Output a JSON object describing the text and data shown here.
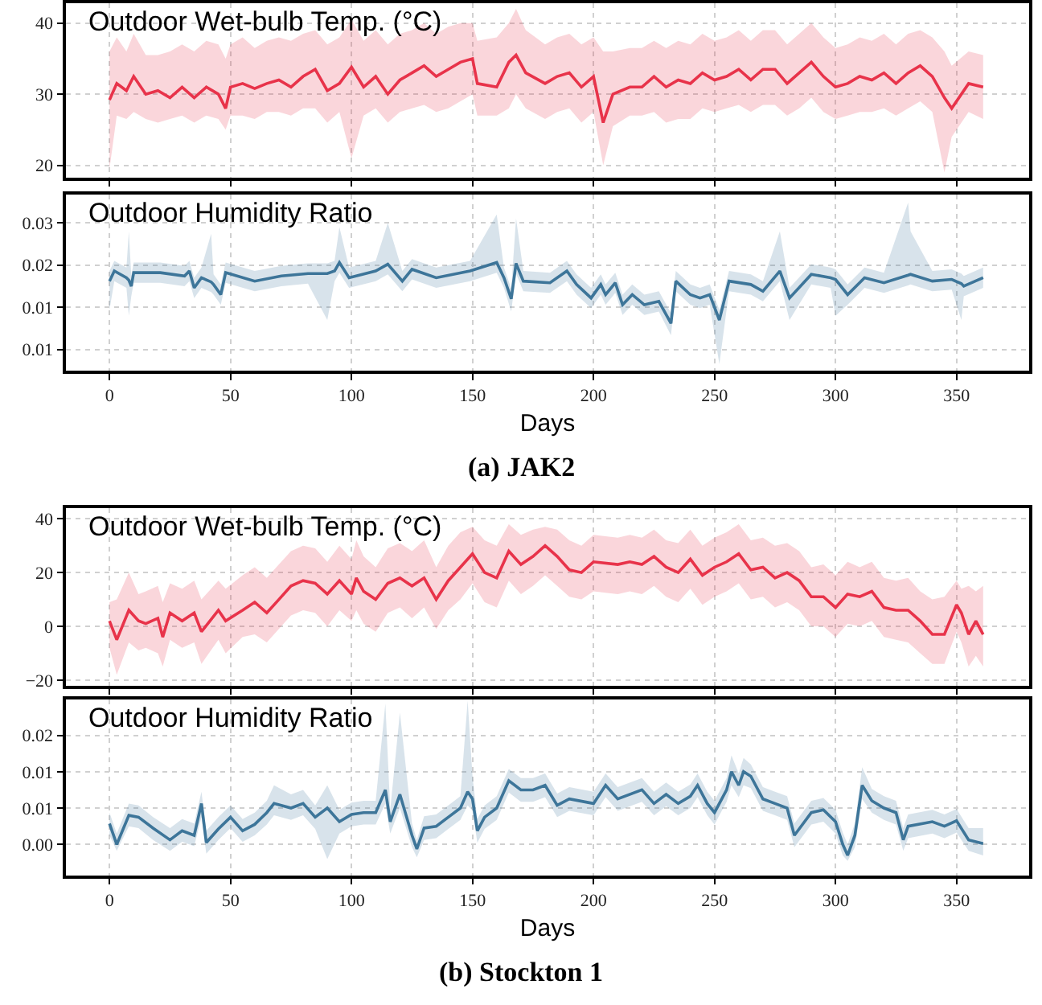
{
  "chart_data": [
    {
      "type": "line",
      "title": "Outdoor Wet-bulb Temp. (°C)",
      "x": [
        0,
        3,
        7,
        10,
        15,
        20,
        25,
        30,
        35,
        40,
        45,
        48,
        50,
        55,
        60,
        65,
        70,
        75,
        80,
        85,
        90,
        95,
        100,
        105,
        110,
        115,
        120,
        125,
        130,
        135,
        140,
        145,
        150,
        152,
        160,
        165,
        168,
        172,
        180,
        185,
        190,
        195,
        200,
        204,
        208,
        215,
        220,
        225,
        230,
        235,
        240,
        245,
        250,
        255,
        260,
        265,
        270,
        275,
        280,
        285,
        290,
        295,
        300,
        305,
        310,
        315,
        320,
        325,
        330,
        335,
        340,
        345,
        348,
        355,
        361
      ],
      "series": [
        {
          "color": "#e8334a",
          "values": [
            29.2,
            31.5,
            30.5,
            32.5,
            30,
            30.5,
            29.5,
            31,
            29.5,
            31,
            30,
            28,
            31,
            31.5,
            30.8,
            31.5,
            32,
            31,
            32.5,
            33.5,
            30.5,
            31.5,
            33.8,
            31,
            32.5,
            30,
            32,
            33,
            34,
            32.5,
            33.5,
            34.5,
            35,
            31.5,
            31,
            34.5,
            35.5,
            33,
            31.5,
            32.5,
            33,
            31,
            32.5,
            26,
            30,
            31,
            31,
            32.5,
            31,
            32,
            31.5,
            33,
            32,
            32.5,
            33.5,
            32,
            33.5,
            33.5,
            31.5,
            33,
            34.5,
            32.5,
            31,
            31.5,
            32.5,
            32,
            33,
            31.5,
            33,
            34,
            32.5,
            29.5,
            28,
            31.5,
            31
          ],
          "lower": [
            19.5,
            27,
            26.5,
            27.5,
            26.5,
            26,
            26.5,
            27,
            26,
            27,
            26.5,
            25,
            27,
            27,
            26.5,
            27.5,
            27.5,
            27,
            28,
            28,
            26,
            27.5,
            21,
            27,
            28,
            26,
            27.5,
            28,
            28.5,
            27.5,
            28,
            29,
            30,
            27,
            27,
            28,
            30,
            28,
            26.5,
            27.5,
            28,
            26,
            27.5,
            20,
            25.5,
            27,
            27,
            27.5,
            26,
            26.5,
            26.5,
            28,
            27.5,
            28,
            28.5,
            27.5,
            28.5,
            28.5,
            27,
            28,
            29.5,
            27.5,
            26.5,
            27,
            27.5,
            27.5,
            28,
            27,
            28,
            29,
            27.5,
            19,
            24,
            27.5,
            26.5
          ],
          "upper": [
            36,
            38,
            36,
            38.5,
            35.5,
            35.5,
            36,
            37,
            36,
            37.5,
            37,
            35,
            37,
            38,
            36.5,
            37.5,
            38,
            37.5,
            38.5,
            39,
            37,
            38,
            40.5,
            37.5,
            39,
            37,
            38.5,
            39,
            40,
            38.5,
            39.5,
            40,
            40,
            37.5,
            38,
            40,
            42,
            39,
            37,
            38,
            38.5,
            37,
            38,
            36,
            36,
            36.5,
            36.5,
            37.5,
            36.5,
            37.5,
            37,
            38.5,
            37.5,
            38,
            39,
            37.5,
            39,
            39,
            37,
            38.5,
            40,
            38,
            36.5,
            37,
            38,
            37.5,
            38.5,
            37,
            38.5,
            39,
            38,
            36,
            34,
            36,
            35.5
          ]
        }
      ],
      "xlim": [
        -18,
        380
      ],
      "xticks": [
        0,
        50,
        100,
        150,
        200,
        250,
        300,
        350
      ],
      "ylim": [
        18.3,
        42.8
      ],
      "yticks": [
        20,
        30,
        40
      ],
      "grid": true,
      "tick_labels": "y"
    },
    {
      "type": "line",
      "title": "Outdoor Humidity Ratio",
      "xlabel": "Days",
      "annotations": [
        "(a) JAK2"
      ],
      "x": [
        0,
        2,
        7,
        8,
        9,
        10,
        21,
        31,
        33,
        35,
        38,
        42,
        43,
        46,
        48,
        60,
        71,
        82,
        90,
        93,
        95,
        99,
        110,
        115,
        121,
        125,
        135,
        149,
        160,
        163,
        166,
        168,
        171,
        182,
        189,
        193,
        199,
        203,
        205,
        209,
        212,
        216,
        221,
        227,
        232,
        234,
        240,
        244,
        248,
        252,
        256,
        265,
        270,
        277,
        281,
        290,
        298,
        300,
        305,
        312,
        320,
        330,
        331,
        340,
        348,
        352,
        353,
        361
      ],
      "series": [
        {
          "color": "#3d7599",
          "values": [
            0.0181,
            0.0193,
            0.0185,
            0.0182,
            0.0175,
            0.0191,
            0.0191,
            0.0187,
            0.0193,
            0.0173,
            0.0185,
            0.018,
            0.0177,
            0.0165,
            0.0191,
            0.0181,
            0.0187,
            0.019,
            0.019,
            0.0193,
            0.0203,
            0.0185,
            0.0193,
            0.0201,
            0.0181,
            0.0195,
            0.0185,
            0.0193,
            0.0203,
            0.0185,
            0.016,
            0.0202,
            0.0181,
            0.0179,
            0.0193,
            0.0177,
            0.0161,
            0.0177,
            0.0165,
            0.0179,
            0.0153,
            0.0165,
            0.0153,
            0.0157,
            0.0131,
            0.0181,
            0.0165,
            0.0161,
            0.0165,
            0.0135,
            0.0181,
            0.0177,
            0.0169,
            0.0193,
            0.0161,
            0.0189,
            0.0185,
            0.0183,
            0.0165,
            0.0185,
            0.0179,
            0.0188,
            0.0189,
            0.0181,
            0.0183,
            0.0178,
            0.0175,
            0.0185
          ],
          "lower": [
            0.0147,
            0.0181,
            0.0173,
            0.014,
            0.0163,
            0.0179,
            0.0179,
            0.0175,
            0.0181,
            0.0161,
            0.0173,
            0.0168,
            0.0165,
            0.0153,
            0.0179,
            0.0169,
            0.0175,
            0.0178,
            0.0135,
            0.0181,
            0.0191,
            0.0173,
            0.0181,
            0.0189,
            0.0169,
            0.0183,
            0.0173,
            0.0181,
            0.0191,
            0.0173,
            0.0145,
            0.019,
            0.0169,
            0.0167,
            0.0181,
            0.0165,
            0.0149,
            0.0165,
            0.0153,
            0.0167,
            0.0141,
            0.0153,
            0.0141,
            0.0145,
            0.0117,
            0.0169,
            0.0153,
            0.0149,
            0.0153,
            0.0083,
            0.0169,
            0.0165,
            0.0157,
            0.0181,
            0.0135,
            0.0177,
            0.0173,
            0.014,
            0.0153,
            0.0173,
            0.0167,
            0.0176,
            0.0177,
            0.0169,
            0.0171,
            0.0135,
            0.0163,
            0.0173
          ],
          "upper": [
            0.0193,
            0.0205,
            0.0197,
            0.024,
            0.0187,
            0.0203,
            0.0203,
            0.0199,
            0.0205,
            0.0185,
            0.0197,
            0.0237,
            0.0189,
            0.0177,
            0.0203,
            0.0193,
            0.0199,
            0.0202,
            0.0202,
            0.0205,
            0.0245,
            0.0197,
            0.0205,
            0.025,
            0.0193,
            0.0207,
            0.0197,
            0.0205,
            0.026,
            0.0197,
            0.0172,
            0.0255,
            0.0193,
            0.0191,
            0.0205,
            0.0189,
            0.0173,
            0.0189,
            0.0177,
            0.0191,
            0.0165,
            0.0177,
            0.0165,
            0.0169,
            0.0143,
            0.0193,
            0.0177,
            0.0173,
            0.0177,
            0.0147,
            0.0193,
            0.0189,
            0.0181,
            0.024,
            0.0173,
            0.0201,
            0.0197,
            0.0195,
            0.0177,
            0.0197,
            0.0191,
            0.0274,
            0.024,
            0.0193,
            0.0195,
            0.019,
            0.0187,
            0.0197
          ]
        }
      ],
      "xlim": [
        -18,
        380
      ],
      "xticks": [
        0,
        50,
        100,
        150,
        200,
        250,
        300,
        350
      ],
      "ylim": [
        0.0075,
        0.0283
      ],
      "yticks": [
        {
          "value": 0.01,
          "label": "0.01"
        },
        {
          "value": 0.015,
          "label": "0.01"
        },
        0.02,
        {
          "value": 0.025,
          "label": "0.03"
        }
      ],
      "grid": true
    },
    {
      "type": "line",
      "title": "Outdoor Wet-bulb Temp. (°C)",
      "x": [
        0,
        3,
        8,
        12,
        15,
        20,
        22,
        25,
        30,
        35,
        38,
        45,
        48,
        55,
        60,
        65,
        70,
        75,
        80,
        85,
        90,
        95,
        100,
        102,
        105,
        110,
        115,
        120,
        125,
        130,
        135,
        140,
        145,
        150,
        155,
        160,
        165,
        170,
        175,
        180,
        185,
        190,
        195,
        200,
        210,
        215,
        220,
        225,
        230,
        235,
        240,
        245,
        250,
        255,
        260,
        265,
        270,
        275,
        280,
        285,
        290,
        295,
        300,
        305,
        310,
        315,
        320,
        325,
        330,
        335,
        340,
        345,
        350,
        352,
        355,
        358,
        361
      ],
      "series": [
        {
          "color": "#e8334a",
          "values": [
            2,
            -5,
            6,
            2,
            1,
            3,
            -4,
            5,
            2,
            5,
            -2,
            6,
            2,
            6,
            9,
            5,
            10,
            15,
            17,
            16,
            12,
            17,
            12,
            18,
            13,
            10,
            16,
            18,
            15,
            18,
            10,
            17,
            22,
            27,
            20,
            18,
            28,
            23,
            26,
            30,
            26,
            21,
            20,
            24,
            23,
            24,
            23,
            26,
            22,
            20,
            25,
            19,
            22,
            24,
            27,
            21,
            22,
            18,
            20,
            17,
            11,
            11,
            7,
            12,
            11,
            13,
            7,
            6,
            6,
            2,
            -3,
            -3,
            8,
            5,
            -3,
            2,
            -3
          ],
          "lower": [
            -8,
            -18,
            -6,
            -9,
            -8,
            -10,
            -15,
            -5,
            -8,
            -6,
            -14,
            -5,
            -10,
            -4,
            -3,
            -6,
            -1,
            4,
            6,
            5,
            0,
            6,
            2,
            6,
            1,
            -2,
            5,
            7,
            3,
            7,
            -1,
            6,
            10,
            16,
            9,
            7,
            17,
            12,
            15,
            19,
            15,
            11,
            10,
            13,
            12,
            13,
            12,
            15,
            11,
            9,
            14,
            8,
            11,
            13,
            16,
            10,
            11,
            7,
            9,
            6,
            0,
            0,
            -4,
            1,
            0,
            2,
            -4,
            -5,
            -6,
            -10,
            -14,
            -14,
            -2,
            -6,
            -15,
            -11,
            -15
          ],
          "upper": [
            9,
            10,
            20,
            12,
            13,
            15,
            9,
            16,
            14,
            17,
            10,
            17,
            14,
            19,
            22,
            18,
            23,
            28,
            30,
            29,
            24,
            30,
            25,
            32,
            26,
            22,
            29,
            31,
            28,
            32,
            22,
            30,
            35,
            37,
            32,
            30,
            38,
            34,
            36,
            37,
            36,
            32,
            30,
            34,
            33,
            34,
            33,
            36,
            32,
            31,
            36,
            30,
            33,
            35,
            38,
            32,
            33,
            30,
            31,
            28,
            22,
            23,
            19,
            24,
            22,
            24,
            18,
            17,
            18,
            13,
            10,
            11,
            17,
            14,
            15,
            13,
            15
          ]
        }
      ],
      "xlim": [
        -18,
        380
      ],
      "xticks": [
        0,
        50,
        100,
        150,
        200,
        250,
        300,
        350
      ],
      "ylim": [
        -22,
        44
      ],
      "yticks": [
        {
          "value": -20,
          "label": "−20"
        },
        0,
        20,
        40
      ],
      "grid": true,
      "tick_labels": "y"
    },
    {
      "type": "line",
      "title": "Outdoor Humidity Ratio",
      "xlabel": "Days",
      "annotations": [
        "(b) Stockton 1"
      ],
      "x": [
        0,
        3,
        8,
        12,
        18,
        25,
        30,
        35,
        38,
        40,
        45,
        50,
        55,
        60,
        65,
        68,
        75,
        80,
        85,
        90,
        95,
        100,
        105,
        110,
        114,
        116,
        120,
        125,
        127,
        130,
        135,
        140,
        145,
        148,
        150,
        152,
        155,
        160,
        165,
        170,
        175,
        180,
        185,
        190,
        200,
        205,
        210,
        220,
        225,
        230,
        235,
        240,
        243,
        247,
        250,
        255,
        257,
        260,
        262,
        265,
        270,
        275,
        280,
        283,
        290,
        295,
        300,
        303,
        305,
        308,
        311,
        315,
        320,
        325,
        328,
        330,
        340,
        345,
        350,
        355,
        361
      ],
      "series": [
        {
          "color": "#3d7599",
          "values": [
            0.0063,
            0.004,
            0.0072,
            0.007,
            0.0058,
            0.0045,
            0.0055,
            0.005,
            0.0085,
            0.0042,
            0.0057,
            0.007,
            0.0055,
            0.0062,
            0.0075,
            0.0085,
            0.008,
            0.0085,
            0.007,
            0.008,
            0.0065,
            0.0073,
            0.0075,
            0.0075,
            0.01,
            0.0065,
            0.0095,
            0.005,
            0.0035,
            0.0058,
            0.006,
            0.007,
            0.008,
            0.0098,
            0.009,
            0.0055,
            0.007,
            0.008,
            0.011,
            0.01,
            0.01,
            0.0105,
            0.0083,
            0.009,
            0.0085,
            0.0105,
            0.009,
            0.01,
            0.0085,
            0.0095,
            0.0085,
            0.0093,
            0.0105,
            0.0085,
            0.0075,
            0.01,
            0.012,
            0.0105,
            0.012,
            0.0115,
            0.009,
            0.0085,
            0.008,
            0.005,
            0.0075,
            0.0078,
            0.0065,
            0.004,
            0.0028,
            0.005,
            0.0105,
            0.0088,
            0.008,
            0.0075,
            0.0045,
            0.006,
            0.0065,
            0.006,
            0.0066,
            0.0045,
            0.0041
          ],
          "lower": [
            0.005,
            0.0033,
            0.006,
            0.0058,
            0.0045,
            0.0033,
            0.0043,
            0.0038,
            0.007,
            0.003,
            0.0045,
            0.0058,
            0.0043,
            0.005,
            0.0062,
            0.0072,
            0.0067,
            0.0072,
            0.0057,
            0.0024,
            0.0052,
            0.006,
            0.0062,
            0.0062,
            0.0085,
            0.0052,
            0.008,
            0.0037,
            0.0026,
            0.0045,
            0.0047,
            0.0057,
            0.0067,
            0.0083,
            0.0077,
            0.0042,
            0.0057,
            0.0067,
            0.0097,
            0.0087,
            0.0087,
            0.0092,
            0.007,
            0.0077,
            0.0072,
            0.0092,
            0.0077,
            0.0087,
            0.0072,
            0.0082,
            0.0072,
            0.008,
            0.0092,
            0.0072,
            0.0062,
            0.0087,
            0.0105,
            0.0092,
            0.0105,
            0.0102,
            0.0077,
            0.0072,
            0.0067,
            0.0037,
            0.0062,
            0.0065,
            0.0052,
            0.0028,
            0.0022,
            0.0037,
            0.009,
            0.0075,
            0.0067,
            0.0062,
            0.0033,
            0.0047,
            0.0052,
            0.0047,
            0.0053,
            0.0033,
            0.0028
          ],
          "upper": [
            0.0075,
            0.0052,
            0.0085,
            0.0083,
            0.007,
            0.0058,
            0.0068,
            0.0063,
            0.0098,
            0.0055,
            0.007,
            0.0083,
            0.0068,
            0.0075,
            0.0088,
            0.0105,
            0.0095,
            0.01,
            0.0083,
            0.0105,
            0.0078,
            0.0086,
            0.0088,
            0.0088,
            0.0195,
            0.0078,
            0.0185,
            0.0063,
            0.0045,
            0.0071,
            0.0073,
            0.0083,
            0.0093,
            0.0198,
            0.0115,
            0.0068,
            0.0083,
            0.0093,
            0.0123,
            0.0113,
            0.0113,
            0.0118,
            0.0096,
            0.0103,
            0.0098,
            0.0118,
            0.0103,
            0.0113,
            0.0098,
            0.0108,
            0.0098,
            0.0106,
            0.0118,
            0.0098,
            0.0088,
            0.0113,
            0.0138,
            0.0118,
            0.0135,
            0.0128,
            0.0103,
            0.0098,
            0.0093,
            0.0063,
            0.0088,
            0.0091,
            0.0078,
            0.0053,
            0.004,
            0.0063,
            0.0125,
            0.0101,
            0.0093,
            0.0088,
            0.0058,
            0.0073,
            0.0078,
            0.0073,
            0.0079,
            0.0058,
            0.0058
          ]
        }
      ],
      "xlim": [
        -18,
        380
      ],
      "xticks": [
        0,
        50,
        100,
        150,
        200,
        250,
        300,
        350
      ],
      "ylim": [
        0.00058,
        0.0199
      ],
      "yticks": [
        {
          "value": 0.004,
          "label": "0.00"
        },
        {
          "value": 0.008,
          "label": "0.01"
        },
        {
          "value": 0.012,
          "label": "0.01"
        },
        {
          "value": 0.016,
          "label": "0.02"
        }
      ],
      "grid": true
    }
  ]
}
